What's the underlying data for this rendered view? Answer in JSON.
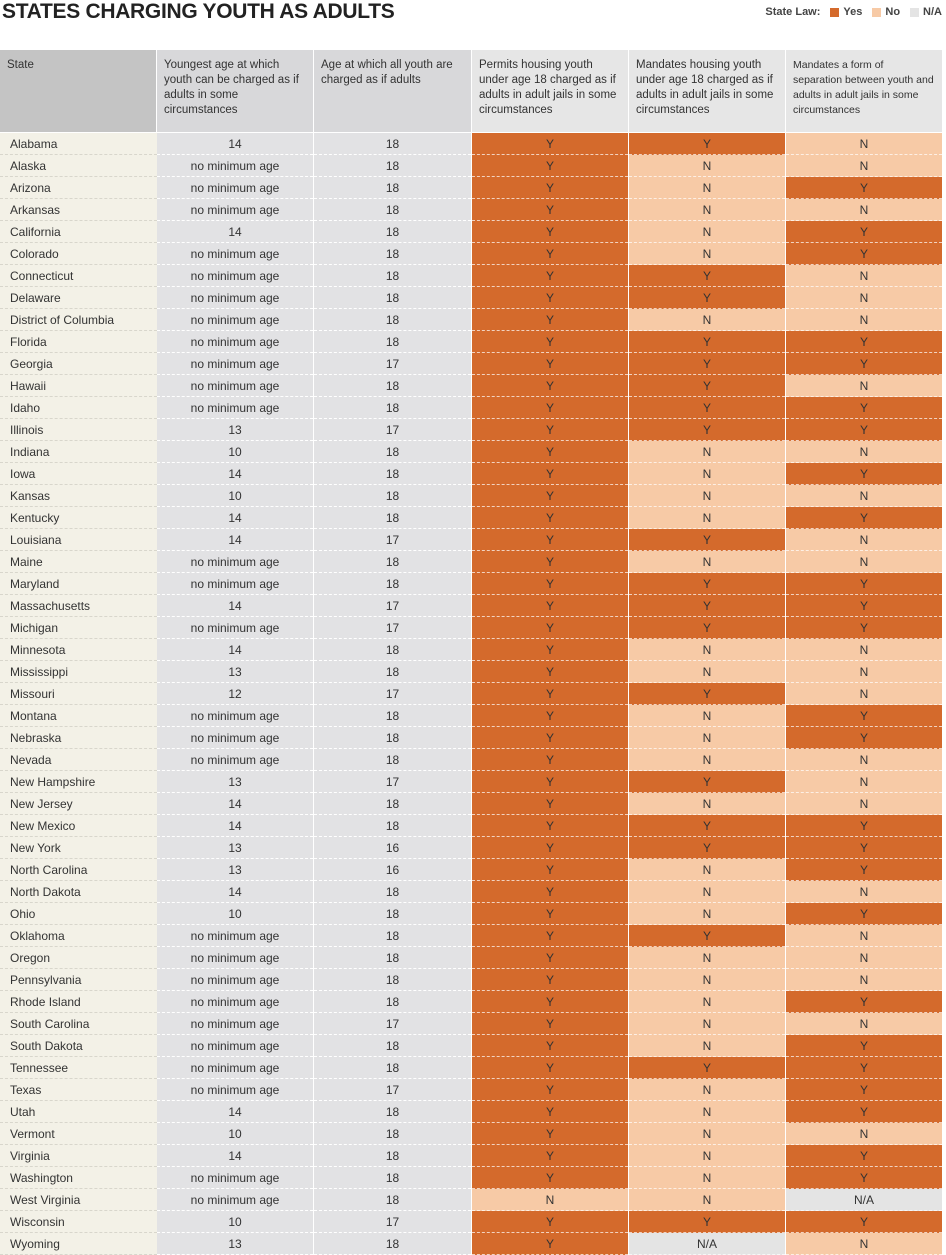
{
  "title": "STATES CHARGING YOUTH AS ADULTS",
  "legend": {
    "label": "State Law:",
    "items": [
      {
        "code": "Y",
        "label": "Yes",
        "color": "#d46a2c"
      },
      {
        "code": "N",
        "label": "No",
        "color": "#f7caa6"
      },
      {
        "code": "N/A",
        "label": "N/A",
        "color": "#e4e4e4"
      }
    ]
  },
  "table": {
    "columns": [
      "State",
      "Youngest age at which youth can be charged as if adults in some circumstances",
      "Age at which all youth are charged as if adults",
      "Permits housing youth under age 18 charged as if adults in adult jails in some circumstances",
      "Mandates housing youth under age 18 charged as if adults in adult jails in some circumstances",
      "Mandates a form of separation between youth and adults in adult jails in some circumstances"
    ],
    "rows": [
      [
        "Alabama",
        "14",
        "18",
        "Y",
        "Y",
        "N"
      ],
      [
        "Alaska",
        "no minimum age",
        "18",
        "Y",
        "N",
        "N"
      ],
      [
        "Arizona",
        "no minimum age",
        "18",
        "Y",
        "N",
        "Y"
      ],
      [
        "Arkansas",
        "no minimum age",
        "18",
        "Y",
        "N",
        "N"
      ],
      [
        "California",
        "14",
        "18",
        "Y",
        "N",
        "Y"
      ],
      [
        "Colorado",
        "no minimum age",
        "18",
        "Y",
        "N",
        "Y"
      ],
      [
        "Connecticut",
        "no minimum age",
        "18",
        "Y",
        "Y",
        "N"
      ],
      [
        "Delaware",
        "no minimum age",
        "18",
        "Y",
        "Y",
        "N"
      ],
      [
        "District of Columbia",
        "no minimum age",
        "18",
        "Y",
        "N",
        "N"
      ],
      [
        "Florida",
        "no minimum age",
        "18",
        "Y",
        "Y",
        "Y"
      ],
      [
        "Georgia",
        "no minimum age",
        "17",
        "Y",
        "Y",
        "Y"
      ],
      [
        "Hawaii",
        "no minimum age",
        "18",
        "Y",
        "Y",
        "N"
      ],
      [
        "Idaho",
        "no minimum age",
        "18",
        "Y",
        "Y",
        "Y"
      ],
      [
        "Illinois",
        "13",
        "17",
        "Y",
        "Y",
        "Y"
      ],
      [
        "Indiana",
        "10",
        "18",
        "Y",
        "N",
        "N"
      ],
      [
        "Iowa",
        "14",
        "18",
        "Y",
        "N",
        "Y"
      ],
      [
        "Kansas",
        "10",
        "18",
        "Y",
        "N",
        "N"
      ],
      [
        "Kentucky",
        "14",
        "18",
        "Y",
        "N",
        "Y"
      ],
      [
        "Louisiana",
        "14",
        "17",
        "Y",
        "Y",
        "N"
      ],
      [
        "Maine",
        "no minimum age",
        "18",
        "Y",
        "N",
        "N"
      ],
      [
        "Maryland",
        "no minimum age",
        "18",
        "Y",
        "Y",
        "Y"
      ],
      [
        "Massachusetts",
        "14",
        "17",
        "Y",
        "Y",
        "Y"
      ],
      [
        "Michigan",
        "no minimum age",
        "17",
        "Y",
        "Y",
        "Y"
      ],
      [
        "Minnesota",
        "14",
        "18",
        "Y",
        "N",
        "N"
      ],
      [
        "Mississippi",
        "13",
        "18",
        "Y",
        "N",
        "N"
      ],
      [
        "Missouri",
        "12",
        "17",
        "Y",
        "Y",
        "N"
      ],
      [
        "Montana",
        "no minimum age",
        "18",
        "Y",
        "N",
        "Y"
      ],
      [
        "Nebraska",
        "no minimum age",
        "18",
        "Y",
        "N",
        "Y"
      ],
      [
        "Nevada",
        "no minimum age",
        "18",
        "Y",
        "N",
        "N"
      ],
      [
        "New Hampshire",
        "13",
        "17",
        "Y",
        "Y",
        "N"
      ],
      [
        "New Jersey",
        "14",
        "18",
        "Y",
        "N",
        "N"
      ],
      [
        "New Mexico",
        "14",
        "18",
        "Y",
        "Y",
        "Y"
      ],
      [
        "New York",
        "13",
        "16",
        "Y",
        "Y",
        "Y"
      ],
      [
        "North Carolina",
        "13",
        "16",
        "Y",
        "N",
        "Y"
      ],
      [
        "North Dakota",
        "14",
        "18",
        "Y",
        "N",
        "N"
      ],
      [
        "Ohio",
        "10",
        "18",
        "Y",
        "N",
        "Y"
      ],
      [
        "Oklahoma",
        "no minimum age",
        "18",
        "Y",
        "Y",
        "N"
      ],
      [
        "Oregon",
        "no minimum age",
        "18",
        "Y",
        "N",
        "N"
      ],
      [
        "Pennsylvania",
        "no minimum age",
        "18",
        "Y",
        "N",
        "N"
      ],
      [
        "Rhode Island",
        "no minimum age",
        "18",
        "Y",
        "N",
        "Y"
      ],
      [
        "South Carolina",
        "no minimum age",
        "17",
        "Y",
        "N",
        "N"
      ],
      [
        "South Dakota",
        "no minimum age",
        "18",
        "Y",
        "N",
        "Y"
      ],
      [
        "Tennessee",
        "no minimum age",
        "18",
        "Y",
        "Y",
        "Y"
      ],
      [
        "Texas",
        "no minimum age",
        "17",
        "Y",
        "N",
        "Y"
      ],
      [
        "Utah",
        "14",
        "18",
        "Y",
        "N",
        "Y"
      ],
      [
        "Vermont",
        "10",
        "18",
        "Y",
        "N",
        "N"
      ],
      [
        "Virginia",
        "14",
        "18",
        "Y",
        "N",
        "Y"
      ],
      [
        "Washington",
        "no minimum age",
        "18",
        "Y",
        "N",
        "Y"
      ],
      [
        "West Virginia",
        "no minimum age",
        "18",
        "N",
        "N",
        "N/A"
      ],
      [
        "Wisconsin",
        "10",
        "17",
        "Y",
        "Y",
        "Y"
      ],
      [
        "Wyoming",
        "13",
        "18",
        "Y",
        "N/A",
        "N"
      ]
    ]
  }
}
